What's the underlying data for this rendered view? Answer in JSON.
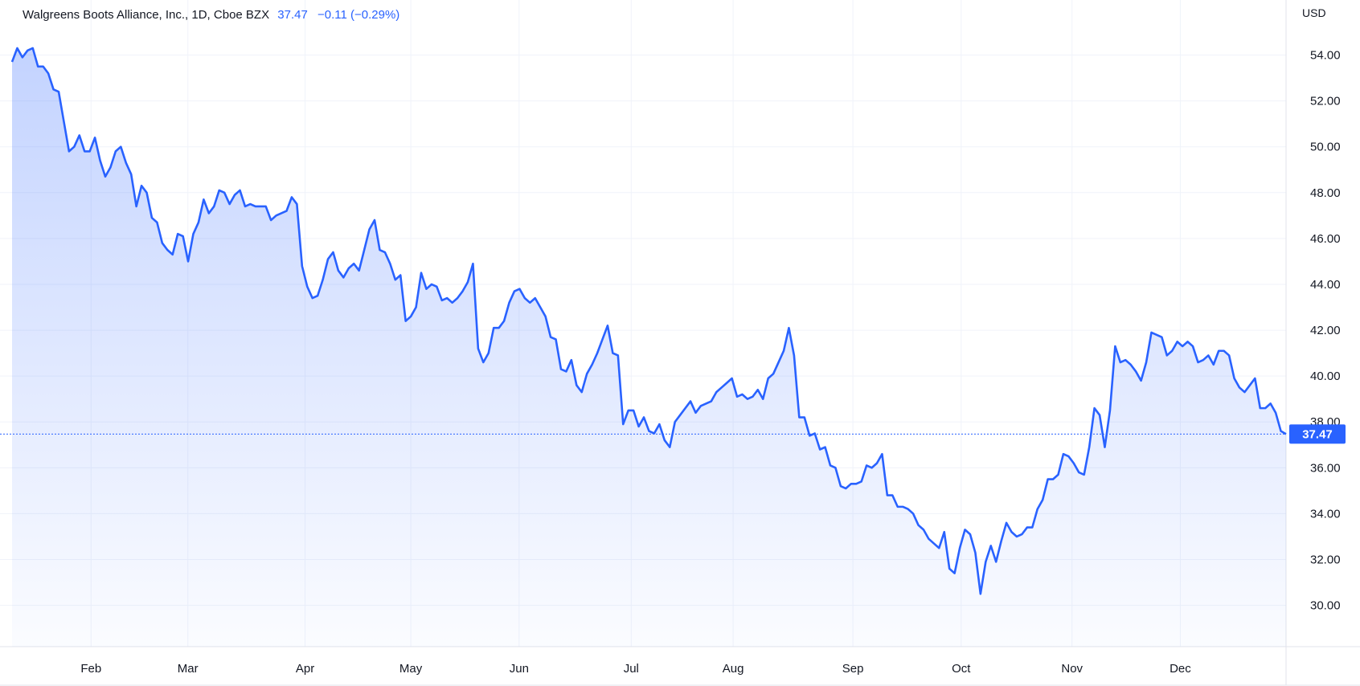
{
  "legend": {
    "symbol": "Walgreens Boots Alliance, Inc., 1D, Cboe BZX",
    "last_value": "37.47",
    "change": "−0.11 (−0.29%)"
  },
  "currency": "USD",
  "colors": {
    "line": "#2962ff",
    "area_top": "#2962ff",
    "grid": "#f0f3fa",
    "axis_text": "#131722"
  },
  "chart_data": {
    "type": "area",
    "title": "Walgreens Boots Alliance, Inc., 1D, Cboe BZX",
    "xlabel": "",
    "ylabel": "",
    "ylim": [
      28.2,
      56.4
    ],
    "y_ticks": [
      "30.00",
      "32.00",
      "34.00",
      "36.00",
      "38.00",
      "40.00",
      "42.00",
      "44.00",
      "46.00",
      "48.00",
      "50.00",
      "52.00",
      "54.00"
    ],
    "x_ticks": [
      {
        "label": "Feb",
        "t": 0.062
      },
      {
        "label": "Mar",
        "t": 0.138
      },
      {
        "label": "Apr",
        "t": 0.23
      },
      {
        "label": "May",
        "t": 0.313
      },
      {
        "label": "Jun",
        "t": 0.398
      },
      {
        "label": "Jul",
        "t": 0.486
      },
      {
        "label": "Aug",
        "t": 0.566
      },
      {
        "label": "Sep",
        "t": 0.66
      },
      {
        "label": "Oct",
        "t": 0.745
      },
      {
        "label": "Nov",
        "t": 0.832
      },
      {
        "label": "Dec",
        "t": 0.917
      }
    ],
    "grid": true,
    "last_price": 37.47,
    "series": [
      {
        "values": [
          53.7,
          54.3,
          53.9,
          54.2,
          54.3,
          53.5,
          53.5,
          53.2,
          52.5,
          52.4,
          51.1,
          49.8,
          50.0,
          50.5,
          49.8,
          49.8,
          50.4,
          49.4,
          48.7,
          49.1,
          49.8,
          50.0,
          49.3,
          48.8,
          47.4,
          48.3,
          48.0,
          46.9,
          46.7,
          45.8,
          45.5,
          45.3,
          46.2,
          46.1,
          45.0,
          46.2,
          46.7,
          47.7,
          47.1,
          47.4,
          48.1,
          48.0,
          47.5,
          47.9,
          48.1,
          47.4,
          47.5,
          47.4,
          47.4,
          47.4,
          46.8,
          47.0,
          47.1,
          47.2,
          47.8,
          47.5,
          44.8,
          43.9,
          43.4,
          43.5,
          44.2,
          45.1,
          45.4,
          44.6,
          44.3,
          44.7,
          44.9,
          44.6,
          45.5,
          46.4,
          46.8,
          45.5,
          45.4,
          44.9,
          44.2,
          44.4,
          42.4,
          42.6,
          43.0,
          44.5,
          43.8,
          44.0,
          43.9,
          43.3,
          43.4,
          43.2,
          43.4,
          43.7,
          44.1,
          44.9,
          41.2,
          40.6,
          41.0,
          42.1,
          42.1,
          42.4,
          43.2,
          43.7,
          43.8,
          43.4,
          43.2,
          43.4,
          43.0,
          42.6,
          41.7,
          41.6,
          40.3,
          40.2,
          40.7,
          39.6,
          39.3,
          40.1,
          40.5,
          41.0,
          41.6,
          42.2,
          41.0,
          40.9,
          37.9,
          38.5,
          38.5,
          37.8,
          38.2,
          37.6,
          37.5,
          37.9,
          37.2,
          36.9,
          38.0,
          38.3,
          38.6,
          38.9,
          38.4,
          38.7,
          38.8,
          38.9,
          39.3,
          39.5,
          39.7,
          39.9,
          39.1,
          39.2,
          39.0,
          39.1,
          39.4,
          39.0,
          39.9,
          40.1,
          40.6,
          41.1,
          42.1,
          40.9,
          38.2,
          38.2,
          37.4,
          37.5,
          36.8,
          36.9,
          36.1,
          36.0,
          35.2,
          35.1,
          35.3,
          35.3,
          35.4,
          36.1,
          36.0,
          36.2,
          36.6,
          34.8,
          34.8,
          34.3,
          34.3,
          34.2,
          34.0,
          33.5,
          33.3,
          32.9,
          32.7,
          32.5,
          33.2,
          31.6,
          31.4,
          32.5,
          33.3,
          33.1,
          32.3,
          30.5,
          31.9,
          32.6,
          31.9,
          32.8,
          33.6,
          33.2,
          33.0,
          33.1,
          33.4,
          33.4,
          34.2,
          34.6,
          35.5,
          35.5,
          35.7,
          36.6,
          36.5,
          36.2,
          35.8,
          35.7,
          36.9,
          38.6,
          38.3,
          36.9,
          38.5,
          41.3,
          40.6,
          40.7,
          40.5,
          40.2,
          39.8,
          40.6,
          41.9,
          41.8,
          41.7,
          40.9,
          41.1,
          41.5,
          41.3,
          41.5,
          41.3,
          40.6,
          40.7,
          40.9,
          40.5,
          41.1,
          41.1,
          40.9,
          39.9,
          39.5,
          39.3,
          39.6,
          39.9,
          38.6,
          38.6,
          38.8,
          38.4,
          37.6,
          37.47
        ]
      }
    ]
  }
}
